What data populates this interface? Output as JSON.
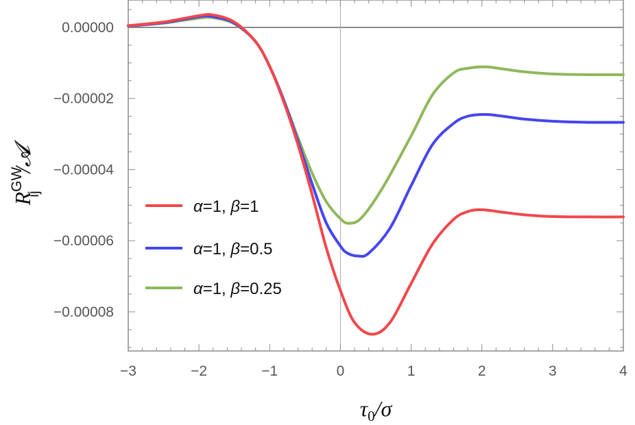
{
  "chart_data": {
    "type": "line",
    "title": "",
    "xlabel_main": "τ",
    "xlabel_sub": "0",
    "xlabel_rest": "/σ",
    "ylabel_main": "R",
    "ylabel_sup": "GW",
    "ylabel_sub": "ij",
    "ylabel_rest": "/𝓐",
    "xlim": [
      -3,
      4
    ],
    "ylim": [
      -9.1e-05,
      7.7e-06
    ],
    "x_ticks": [
      -3,
      -2,
      -1,
      0,
      1,
      2,
      3,
      4
    ],
    "x_tick_labels": [
      "−3",
      "−2",
      "−1",
      "0",
      "1",
      "2",
      "3",
      "4"
    ],
    "y_ticks": [
      0,
      -2e-05,
      -4e-05,
      -6e-05,
      -8e-05
    ],
    "y_tick_labels": [
      "0.00000",
      "−0.00002",
      "−0.00004",
      "−0.00006",
      "−0.00008"
    ],
    "grid": false,
    "reference_lines": {
      "horizontal_at_y": 0,
      "vertical_at_x": 0
    },
    "legend_position": "left-center",
    "series": [
      {
        "name": "α=1, β=1",
        "label_parts": [
          "α",
          "=1, ",
          "β",
          "=1"
        ],
        "color": "#f2474b",
        "x": [
          -3,
          -2.5,
          -2,
          -1.8,
          -1.5,
          -1.2,
          -1,
          -0.8,
          -0.6,
          -0.4,
          -0.2,
          0,
          0.2,
          0.45,
          0.7,
          1,
          1.3,
          1.6,
          1.8,
          2,
          2.3,
          2.6,
          3,
          3.5,
          4
        ],
        "y": [
          5e-07,
          1.5e-06,
          3.3e-06,
          3.5e-06,
          1.5e-06,
          -4e-06,
          -1.1e-05,
          -2.1e-05,
          -3.3e-05,
          -4.7e-05,
          -6.2e-05,
          -7.4e-05,
          -8.3e-05,
          -8.63e-05,
          -8.3e-05,
          -7.2e-05,
          -6.1e-05,
          -5.4e-05,
          -5.18e-05,
          -5.13e-05,
          -5.2e-05,
          -5.27e-05,
          -5.32e-05,
          -5.33e-05,
          -5.33e-05
        ]
      },
      {
        "name": "α=1, β=0.5",
        "label_parts": [
          "α",
          "=1, ",
          "β",
          "=0.5"
        ],
        "color": "#4545f0",
        "x": [
          -3,
          -2.5,
          -2,
          -1.8,
          -1.5,
          -1.2,
          -1,
          -0.8,
          -0.6,
          -0.4,
          -0.2,
          0,
          0.1,
          0.25,
          0.4,
          0.7,
          1,
          1.3,
          1.6,
          1.8,
          2.05,
          2.3,
          2.6,
          3,
          3.5,
          4
        ],
        "y": [
          4e-07,
          1.3e-06,
          3e-06,
          3e-06,
          1.2e-06,
          -4e-06,
          -1.1e-05,
          -2.05e-05,
          -3.2e-05,
          -4.4e-05,
          -5.5e-05,
          -6.15e-05,
          -6.35e-05,
          -6.43e-05,
          -6.35e-05,
          -5.65e-05,
          -4.45e-05,
          -3.3e-05,
          -2.7e-05,
          -2.5e-05,
          -2.45e-05,
          -2.5e-05,
          -2.58e-05,
          -2.64e-05,
          -2.67e-05,
          -2.67e-05
        ]
      },
      {
        "name": "α=1, β=0.25",
        "label_parts": [
          "α",
          "=1, ",
          "β",
          "=0.25"
        ],
        "color": "#8eb85a",
        "x": [
          -3,
          -2.5,
          -2,
          -1.8,
          -1.5,
          -1.2,
          -1,
          -0.8,
          -0.6,
          -0.4,
          -0.2,
          0,
          0.12,
          0.3,
          0.6,
          1,
          1.3,
          1.6,
          1.8,
          2.05,
          2.3,
          2.6,
          3,
          3.5,
          4
        ],
        "y": [
          4e-07,
          1.2e-06,
          2.6e-06,
          2.7e-06,
          1e-06,
          -4e-06,
          -1.1e-05,
          -2.05e-05,
          -3.1e-05,
          -4.1e-05,
          -4.9e-05,
          -5.38e-05,
          -5.51e-05,
          -5.35e-05,
          -4.5e-05,
          -3.05e-05,
          -1.9e-05,
          -1.28e-05,
          -1.15e-05,
          -1.11e-05,
          -1.17e-05,
          -1.25e-05,
          -1.31e-05,
          -1.33e-05,
          -1.33e-05
        ]
      }
    ]
  }
}
